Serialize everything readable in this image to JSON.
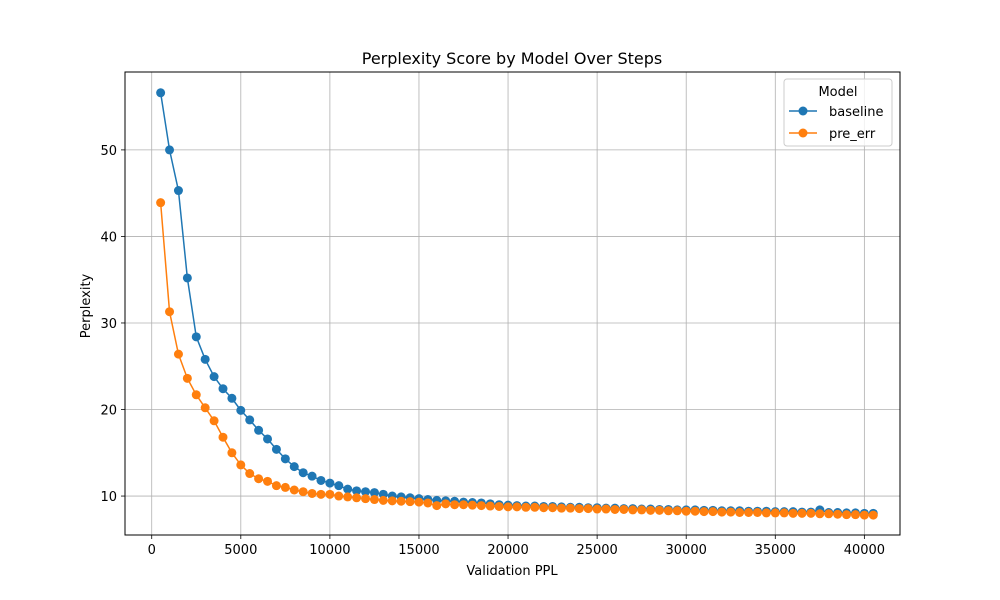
{
  "chart_data": {
    "type": "line",
    "title": "Perplexity Score by Model Over Steps",
    "xlabel": "Validation PPL",
    "ylabel": "Perplexity",
    "xlim": [
      -1500,
      42000
    ],
    "ylim": [
      5.5,
      59
    ],
    "xticks": [
      0,
      5000,
      10000,
      15000,
      20000,
      25000,
      30000,
      35000,
      40000
    ],
    "yticks": [
      10,
      20,
      30,
      40,
      50
    ],
    "grid": true,
    "legend": {
      "title": "Model",
      "position": "top-right"
    },
    "x": [
      500,
      1000,
      1500,
      2000,
      2500,
      3000,
      3500,
      4000,
      4500,
      5000,
      5500,
      6000,
      6500,
      7000,
      7500,
      8000,
      8500,
      9000,
      9500,
      10000,
      10500,
      11000,
      11500,
      12000,
      12500,
      13000,
      13500,
      14000,
      14500,
      15000,
      15500,
      16000,
      16500,
      17000,
      17500,
      18000,
      18500,
      19000,
      19500,
      20000,
      20500,
      21000,
      21500,
      22000,
      22500,
      23000,
      23500,
      24000,
      24500,
      25000,
      25500,
      26000,
      26500,
      27000,
      27500,
      28000,
      28500,
      29000,
      29500,
      30000,
      30500,
      31000,
      31500,
      32000,
      32500,
      33000,
      33500,
      34000,
      34500,
      35000,
      35500,
      36000,
      36500,
      37000,
      37500,
      38000,
      38500,
      39000,
      39500,
      40000,
      40500
    ],
    "series": [
      {
        "name": "baseline",
        "color": "#1f77b4",
        "values": [
          56.6,
          50.0,
          45.3,
          35.2,
          28.4,
          25.8,
          23.8,
          22.4,
          21.3,
          19.9,
          18.8,
          17.6,
          16.6,
          15.4,
          14.3,
          13.4,
          12.7,
          12.3,
          11.8,
          11.5,
          11.2,
          10.8,
          10.6,
          10.5,
          10.4,
          10.2,
          10.0,
          9.9,
          9.8,
          9.7,
          9.6,
          9.5,
          9.45,
          9.4,
          9.3,
          9.25,
          9.2,
          9.1,
          9.0,
          8.95,
          8.9,
          8.85,
          8.85,
          8.8,
          8.8,
          8.75,
          8.7,
          8.7,
          8.65,
          8.65,
          8.6,
          8.6,
          8.55,
          8.55,
          8.5,
          8.5,
          8.45,
          8.45,
          8.4,
          8.4,
          8.4,
          8.35,
          8.35,
          8.3,
          8.3,
          8.3,
          8.25,
          8.25,
          8.25,
          8.2,
          8.2,
          8.2,
          8.15,
          8.15,
          8.4,
          8.1,
          8.1,
          8.05,
          8.05,
          8.0,
          8.0
        ]
      },
      {
        "name": "pre_err",
        "color": "#ff7f0e",
        "values": [
          43.9,
          31.3,
          26.4,
          23.6,
          21.7,
          20.2,
          18.7,
          16.8,
          15.0,
          13.6,
          12.6,
          12.0,
          11.7,
          11.2,
          11.0,
          10.7,
          10.5,
          10.3,
          10.2,
          10.2,
          10.0,
          9.9,
          9.8,
          9.7,
          9.6,
          9.5,
          9.45,
          9.4,
          9.35,
          9.3,
          9.2,
          8.9,
          9.1,
          9.0,
          9.0,
          8.95,
          8.9,
          8.85,
          8.8,
          8.75,
          8.75,
          8.7,
          8.7,
          8.65,
          8.65,
          8.6,
          8.6,
          8.55,
          8.55,
          8.5,
          8.5,
          8.45,
          8.45,
          8.4,
          8.4,
          8.35,
          8.35,
          8.3,
          8.3,
          8.25,
          8.25,
          8.2,
          8.2,
          8.15,
          8.15,
          8.1,
          8.1,
          8.1,
          8.05,
          8.05,
          8.05,
          8.0,
          8.0,
          8.0,
          7.95,
          7.95,
          7.9,
          7.85,
          7.85,
          7.8,
          7.8
        ]
      }
    ]
  }
}
